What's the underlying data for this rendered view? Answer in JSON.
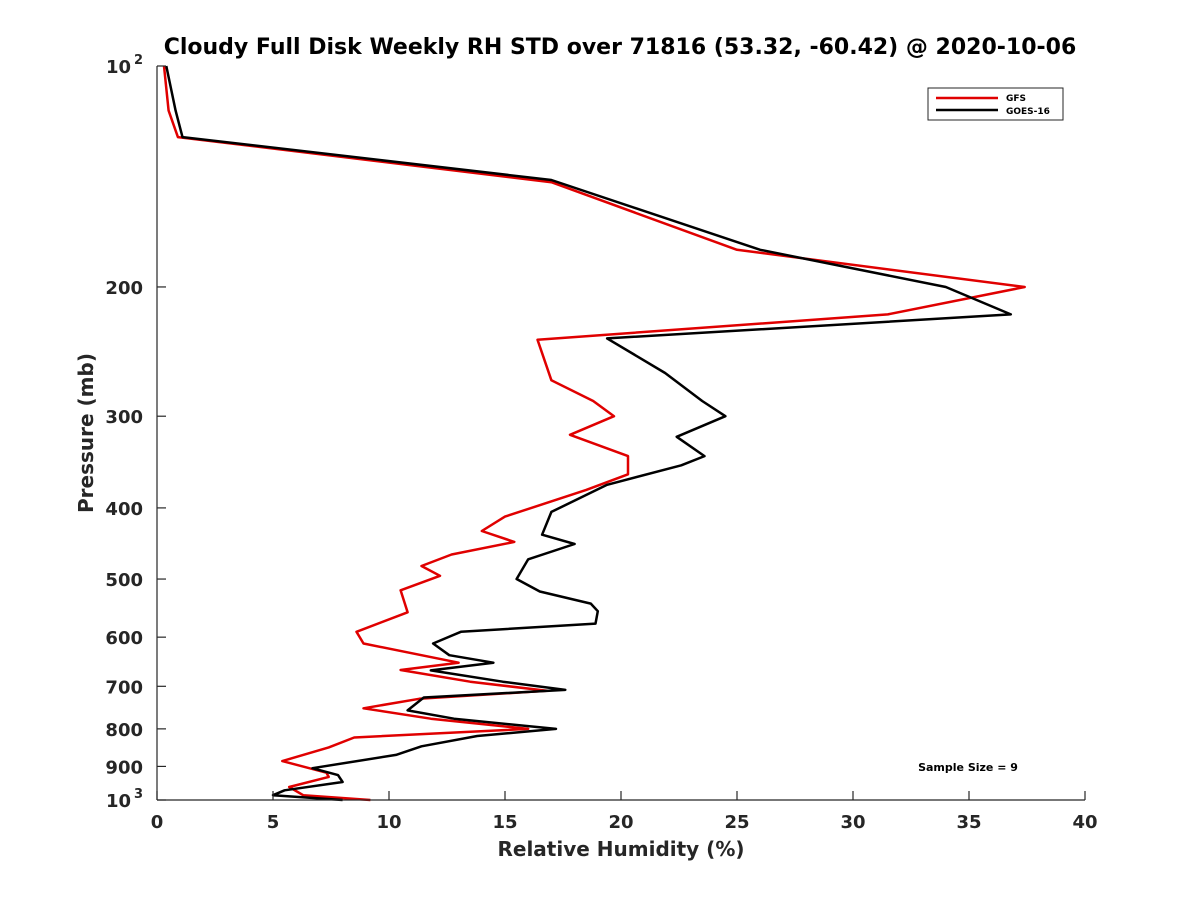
{
  "chart_data": {
    "type": "line",
    "title": "Cloudy Full Disk Weekly RH STD over 71816 (53.32, -60.42) @ 2020-10-06",
    "xlabel": "Relative Humidity (%)",
    "ylabel": "Pressure (mb)",
    "xlim": [
      0,
      40
    ],
    "ylim": [
      100,
      1000
    ],
    "yscale": "log",
    "y_inverted": true,
    "grid": false,
    "legend_position": "top-right",
    "x_ticks": [
      "0",
      "5",
      "10",
      "15",
      "20",
      "25",
      "30",
      "35",
      "40"
    ],
    "x_tick_values": [
      0,
      5,
      10,
      15,
      20,
      25,
      30,
      35,
      40
    ],
    "y_ticks": [
      {
        "value": 100,
        "base": "10",
        "sup": "2"
      },
      {
        "value": 200,
        "label": "200"
      },
      {
        "value": 300,
        "label": "300"
      },
      {
        "value": 400,
        "label": "400"
      },
      {
        "value": 500,
        "label": "500"
      },
      {
        "value": 600,
        "label": "600"
      },
      {
        "value": 700,
        "label": "700"
      },
      {
        "value": 800,
        "label": "800"
      },
      {
        "value": 900,
        "label": "900"
      },
      {
        "value": 1000,
        "base": "10",
        "sup": "3"
      }
    ],
    "annotation": "Sample Size = 9",
    "series": [
      {
        "name": "GFS",
        "color": "#e00000",
        "points": [
          [
            0.3,
            100
          ],
          [
            0.5,
            115
          ],
          [
            0.9,
            125
          ],
          [
            17,
            144
          ],
          [
            25,
            178
          ],
          [
            37.4,
            200
          ],
          [
            31.5,
            218
          ],
          [
            16.4,
            236
          ],
          [
            17,
            268
          ],
          [
            18.8,
            286
          ],
          [
            19.7,
            300
          ],
          [
            17.8,
            318
          ],
          [
            20.3,
            340
          ],
          [
            20.3,
            360
          ],
          [
            18.5,
            378
          ],
          [
            15,
            411
          ],
          [
            14,
            430
          ],
          [
            15.4,
            445
          ],
          [
            12.7,
            463
          ],
          [
            11.4,
            480
          ],
          [
            12.2,
            495
          ],
          [
            10.5,
            518
          ],
          [
            10.8,
            555
          ],
          [
            8.6,
            590
          ],
          [
            8.9,
            612
          ],
          [
            13,
            650
          ],
          [
            10.5,
            665
          ],
          [
            13.5,
            690
          ],
          [
            16.8,
            710
          ],
          [
            11.3,
            728
          ],
          [
            8.9,
            750
          ],
          [
            11.8,
            775
          ],
          [
            16,
            800
          ],
          [
            8.5,
            822
          ],
          [
            7.4,
            848
          ],
          [
            5.4,
            885
          ],
          [
            7.3,
            918
          ],
          [
            7.4,
            930
          ],
          [
            5.7,
            960
          ],
          [
            6.3,
            985
          ],
          [
            9.2,
            1000
          ]
        ]
      },
      {
        "name": "GOES-16",
        "color": "#000000",
        "points": [
          [
            0.4,
            100
          ],
          [
            0.8,
            115
          ],
          [
            1.1,
            125
          ],
          [
            17,
            143
          ],
          [
            26,
            178
          ],
          [
            34,
            200
          ],
          [
            36.8,
            218
          ],
          [
            19.4,
            235
          ],
          [
            21.9,
            262
          ],
          [
            23.5,
            286
          ],
          [
            24.5,
            300
          ],
          [
            22.4,
            320
          ],
          [
            23.6,
            340
          ],
          [
            22.6,
            350
          ],
          [
            19.4,
            372
          ],
          [
            17,
            405
          ],
          [
            16.6,
            435
          ],
          [
            18,
            448
          ],
          [
            16,
            470
          ],
          [
            15.5,
            500
          ],
          [
            16.5,
            520
          ],
          [
            18.7,
            540
          ],
          [
            19,
            553
          ],
          [
            18.9,
            575
          ],
          [
            13.1,
            590
          ],
          [
            11.9,
            612
          ],
          [
            12.6,
            635
          ],
          [
            14.5,
            650
          ],
          [
            11.8,
            666
          ],
          [
            14.9,
            690
          ],
          [
            17.6,
            708
          ],
          [
            11.5,
            725
          ],
          [
            10.8,
            755
          ],
          [
            12.8,
            775
          ],
          [
            17.2,
            800
          ],
          [
            13.8,
            818
          ],
          [
            11.4,
            845
          ],
          [
            10.3,
            868
          ],
          [
            6.7,
            905
          ],
          [
            7.8,
            925
          ],
          [
            8,
            945
          ],
          [
            5.5,
            970
          ],
          [
            5,
            985
          ],
          [
            8,
            1000
          ]
        ]
      }
    ]
  }
}
